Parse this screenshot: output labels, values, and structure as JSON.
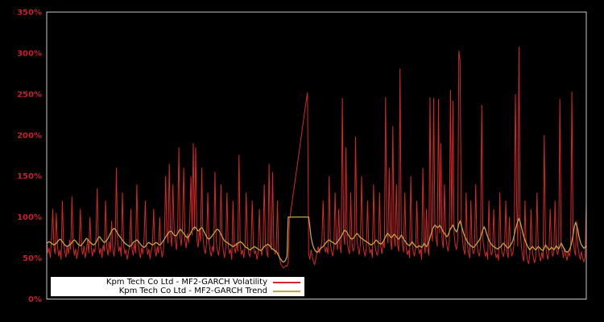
{
  "chart_data": {
    "type": "line",
    "title": "",
    "x_axis": {
      "label": "",
      "tick_labels": []
    },
    "y_axis": {
      "label": "",
      "unit": "%",
      "min": 0,
      "max": 350,
      "tick_step": 50,
      "tick_labels": [
        "0%",
        "50%",
        "100%",
        "150%",
        "200%",
        "250%",
        "300%",
        "350%"
      ],
      "tick_color": "#c61f2e"
    },
    "plot": {
      "background": "#000000",
      "border_color": "#c8c8c8"
    },
    "legend": {
      "position": "lower-left",
      "background": "#ffffff",
      "text_color": "#000000"
    },
    "series": [
      {
        "name": "Kpm Tech Co Ltd - MF2-GARCH Volatility",
        "color": "#d62728",
        "values": [
          70,
          56,
          62,
          50,
          75,
          110,
          63,
          55,
          105,
          64,
          52,
          60,
          48,
          120,
          70,
          58,
          51,
          64,
          55,
          72,
          60,
          125,
          66,
          53,
          61,
          49,
          58,
          68,
          110,
          62,
          54,
          65,
          50,
          59,
          72,
          56,
          100,
          63,
          52,
          61,
          57,
          75,
          135,
          68,
          55,
          62,
          50,
          66,
          58,
          120,
          64,
          53,
          70,
          57,
          95,
          61,
          52,
          67,
          160,
          72,
          58,
          64,
          52,
          130,
          66,
          55,
          60,
          48,
          57,
          65,
          110,
          62,
          53,
          68,
          56,
          140,
          70,
          58,
          50,
          63,
          55,
          74,
          120,
          65,
          54,
          61,
          49,
          59,
          66,
          110,
          60,
          52,
          64,
          56,
          100,
          62,
          51,
          58,
          75,
          150,
          82,
          68,
          165,
          78,
          64,
          140,
          85,
          70,
          60,
          92,
          185,
          76,
          65,
          88,
          160,
          72,
          62,
          80,
          68,
          95,
          150,
          78,
          190,
          84,
          185,
          72,
          63,
          86,
          70,
          160,
          75,
          62,
          55,
          68,
          130,
          72,
          58,
          52,
          65,
          57,
          155,
          70,
          60,
          53,
          66,
          140,
          74,
          58,
          50,
          62,
          130,
          67,
          55,
          61,
          48,
          120,
          64,
          56,
          69,
          58,
          176,
          66,
          54,
          60,
          50,
          63,
          130,
          68,
          56,
          52,
          61,
          120,
          64,
          55,
          59,
          48,
          57,
          110,
          62,
          53,
          65,
          140,
          67,
          58,
          51,
          165,
          70,
          60,
          155,
          63,
          55,
          58,
          120,
          55,
          48,
          42,
          40,
          38,
          39,
          41,
          40,
          45,
          95,
          106,
          116,
          127,
          137,
          148,
          158,
          169,
          179,
          190,
          200,
          211,
          221,
          232,
          242,
          252,
          55,
          48,
          60,
          52,
          45,
          42,
          50,
          58,
          64,
          56,
          62,
          70,
          120,
          66,
          57,
          63,
          55,
          150,
          68,
          58,
          52,
          64,
          130,
          70,
          60,
          110,
          65,
          56,
          245,
          80,
          66,
          185,
          72,
          60,
          55,
          130,
          68,
          58,
          64,
          198,
          76,
          62,
          54,
          67,
          150,
          70,
          59,
          52,
          63,
          120,
          66,
          56,
          61,
          50,
          140,
          68,
          58,
          53,
          60,
          130,
          65,
          55,
          70,
          62,
          246,
          84,
          68,
          160,
          72,
          60,
          211,
          76,
          64,
          140,
          66,
          58,
          281,
          85,
          66,
          57,
          130,
          64,
          54,
          60,
          50,
          150,
          70,
          58,
          52,
          62,
          120,
          66,
          55,
          61,
          48,
          160,
          68,
          56,
          110,
          63,
          53,
          246,
          88,
          70,
          245,
          92,
          74,
          64,
          244,
          80,
          190,
          72,
          62,
          140,
          76,
          66,
          58,
          70,
          255,
          85,
          242,
          78,
          66,
          60,
          72,
          303,
          290,
          95,
          72,
          60,
          54,
          130,
          66,
          56,
          50,
          120,
          63,
          55,
          60,
          140,
          67,
          57,
          52,
          64,
          237,
          72,
          60,
          52,
          58,
          48,
          120,
          62,
          54,
          57,
          110,
          60,
          50,
          55,
          47,
          130,
          64,
          56,
          52,
          60,
          120,
          58,
          50,
          100,
          62,
          53,
          57,
          70,
          250,
          120,
          64,
          308,
          85,
          64,
          52,
          46,
          120,
          58,
          48,
          43,
          55,
          110,
          60,
          50,
          44,
          52,
          130,
          62,
          53,
          46,
          57,
          49,
          200,
          68,
          56,
          48,
          60,
          110,
          62,
          52,
          57,
          120,
          64,
          54,
          59,
          244,
          70,
          58,
          50,
          62,
          54,
          47,
          58,
          52,
          60,
          253,
          72,
          60,
          53,
          95,
          64,
          55,
          48,
          58,
          50,
          45,
          52,
          118
        ]
      },
      {
        "name": "Kpm Tech Co Ltd - MF2-GARCH Trend",
        "color": "#c2a63e",
        "values": [
          68,
          69,
          70,
          69,
          68,
          67,
          66,
          67,
          68,
          70,
          72,
          73,
          72,
          70,
          68,
          66,
          65,
          64,
          65,
          66,
          67,
          69,
          71,
          72,
          71,
          69,
          67,
          66,
          65,
          66,
          68,
          70,
          72,
          74,
          73,
          71,
          69,
          68,
          67,
          66,
          67,
          69,
          72,
          75,
          76,
          74,
          72,
          70,
          69,
          70,
          72,
          74,
          77,
          80,
          83,
          85,
          86,
          85,
          83,
          80,
          78,
          76,
          74,
          72,
          70,
          68,
          67,
          66,
          65,
          64,
          65,
          67,
          69,
          70,
          71,
          72,
          71,
          69,
          67,
          65,
          64,
          63,
          64,
          66,
          68,
          69,
          68,
          67,
          66,
          67,
          68,
          69,
          68,
          67,
          66,
          67,
          69,
          71,
          73,
          76,
          78,
          80,
          82,
          83,
          82,
          80,
          78,
          77,
          78,
          80,
          83,
          85,
          84,
          82,
          80,
          78,
          76,
          75,
          76,
          78,
          81,
          84,
          86,
          88,
          87,
          85,
          83,
          84,
          86,
          87,
          85,
          82,
          79,
          76,
          74,
          73,
          74,
          76,
          78,
          80,
          82,
          84,
          85,
          84,
          82,
          79,
          76,
          73,
          71,
          70,
          69,
          68,
          67,
          66,
          65,
          64,
          65,
          66,
          67,
          68,
          69,
          70,
          69,
          68,
          66,
          64,
          63,
          62,
          61,
          60,
          61,
          62,
          63,
          64,
          63,
          62,
          61,
          60,
          59,
          60,
          62,
          64,
          65,
          66,
          67,
          66,
          64,
          62,
          61,
          60,
          59,
          58,
          56,
          53,
          50,
          48,
          46,
          45,
          46,
          48,
          52,
          100,
          100,
          100,
          100,
          100,
          100,
          100,
          100,
          100,
          100,
          100,
          100,
          100,
          100,
          100,
          100,
          100,
          100,
          88,
          75,
          68,
          63,
          60,
          58,
          57,
          58,
          60,
          62,
          63,
          64,
          66,
          68,
          70,
          71,
          72,
          71,
          70,
          69,
          68,
          67,
          68,
          70,
          72,
          74,
          76,
          79,
          82,
          84,
          83,
          81,
          78,
          76,
          74,
          73,
          74,
          76,
          78,
          80,
          79,
          77,
          75,
          74,
          73,
          72,
          71,
          70,
          69,
          68,
          67,
          66,
          67,
          68,
          70,
          72,
          71,
          69,
          68,
          67,
          68,
          70,
          73,
          76,
          79,
          80,
          78,
          76,
          75,
          77,
          79,
          78,
          76,
          74,
          73,
          75,
          78,
          76,
          73,
          71,
          69,
          67,
          66,
          65,
          67,
          70,
          68,
          66,
          64,
          63,
          64,
          65,
          64,
          63,
          65,
          68,
          66,
          64,
          66,
          70,
          75,
          80,
          85,
          88,
          90,
          89,
          87,
          88,
          90,
          88,
          85,
          82,
          80,
          78,
          76,
          78,
          82,
          86,
          88,
          90,
          87,
          84,
          82,
          85,
          92,
          95,
          90,
          85,
          80,
          76,
          73,
          70,
          68,
          66,
          65,
          64,
          63,
          64,
          66,
          68,
          70,
          72,
          75,
          80,
          85,
          88,
          85,
          80,
          76,
          72,
          69,
          67,
          65,
          64,
          63,
          62,
          61,
          62,
          63,
          64,
          66,
          68,
          67,
          65,
          63,
          62,
          64,
          66,
          68,
          72,
          78,
          85,
          90,
          95,
          98,
          94,
          88,
          82,
          76,
          72,
          68,
          65,
          62,
          60,
          62,
          64,
          63,
          61,
          60,
          62,
          64,
          63,
          61,
          60,
          59,
          62,
          66,
          64,
          62,
          60,
          61,
          63,
          62,
          60,
          62,
          65,
          63,
          61,
          64,
          68,
          66,
          63,
          60,
          58,
          57,
          58,
          60,
          64,
          70,
          78,
          88,
          93,
          90,
          84,
          76,
          70,
          66,
          64,
          62,
          63,
          65
        ]
      }
    ]
  }
}
